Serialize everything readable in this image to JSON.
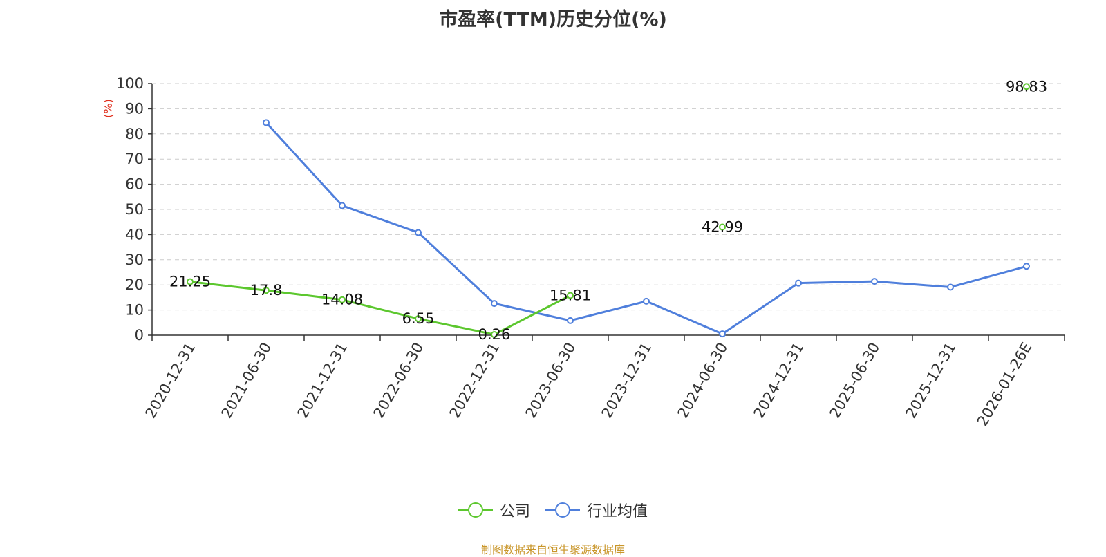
{
  "title": "市盈率(TTM)历史分位(%)",
  "source": "制图数据来自恒生聚源数据库",
  "chart_data": {
    "type": "line",
    "title": "市盈率(TTM)历史分位(%)",
    "ylabel": "(%)",
    "ylim": [
      0,
      100
    ],
    "yticks": [
      0,
      10,
      20,
      30,
      40,
      50,
      60,
      70,
      80,
      90,
      100
    ],
    "grid": true,
    "legend_position": "bottom",
    "categories": [
      "2020-12-31",
      "2021-06-30",
      "2021-12-31",
      "2022-06-30",
      "2022-12-31",
      "2023-06-30",
      "2023-12-31",
      "2024-06-30",
      "2024-12-31",
      "2025-06-30",
      "2025-12-31",
      "2026-01-26E"
    ],
    "series": [
      {
        "name": "公司",
        "color": "#5cc72e",
        "show_labels": true,
        "values": [
          21.25,
          17.8,
          14.08,
          6.55,
          0.26,
          15.81,
          null,
          42.99,
          null,
          null,
          null,
          98.83
        ]
      },
      {
        "name": "行业均值",
        "color": "#4f7fdc",
        "show_labels": false,
        "values": [
          null,
          84.5,
          51.5,
          40.8,
          12.6,
          5.8,
          13.5,
          0.5,
          20.7,
          21.4,
          19.1,
          27.4
        ]
      }
    ]
  }
}
